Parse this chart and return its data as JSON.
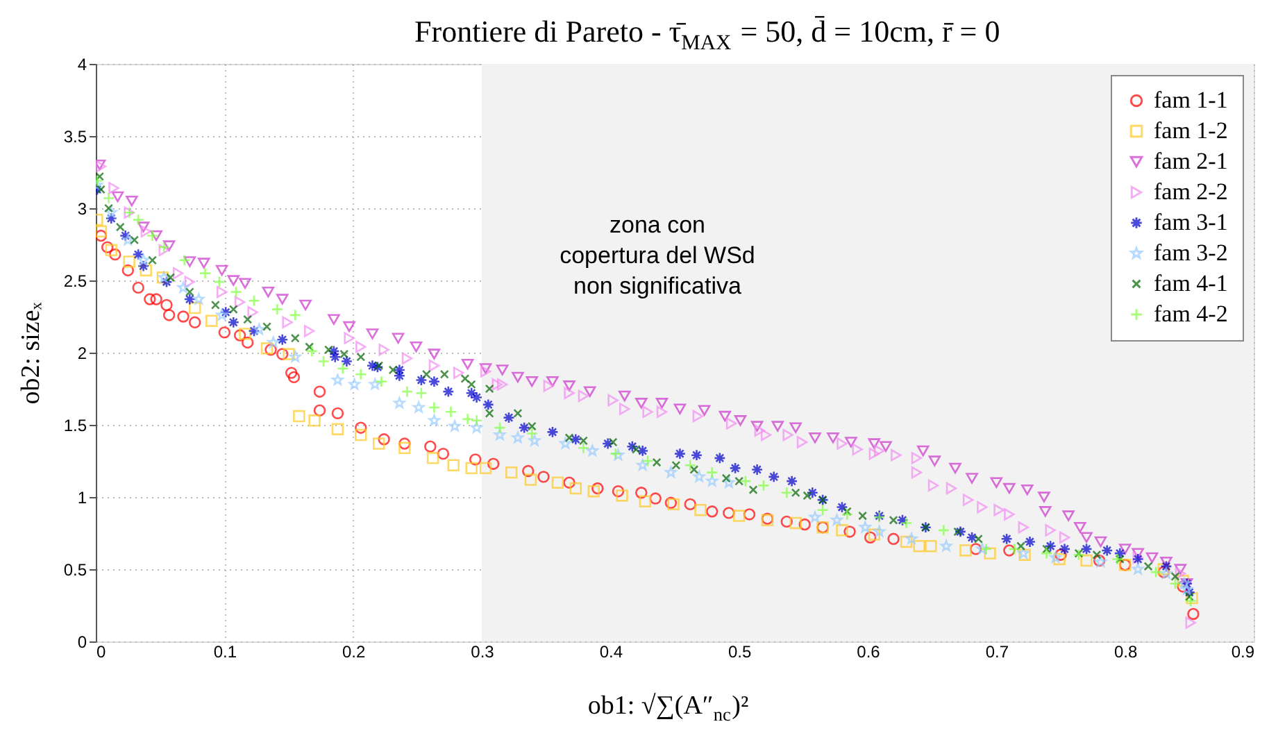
{
  "chart_data": {
    "type": "scatter",
    "title": "Frontiere di Pareto  -  τ̄$_{MAX}$ = 50, d̄ = 10cm, r̄ = 0",
    "xlabel": "ob1: √∑(A″$_{nc}$)²",
    "ylabel": "ob2: sizeₓ",
    "xlim": [
      0,
      0.9
    ],
    "xticks": [
      0,
      0.1,
      0.2,
      0.3,
      0.4,
      0.5,
      0.6,
      0.7,
      0.8,
      0.9
    ],
    "ylim": [
      0,
      4
    ],
    "yticks": [
      0,
      0.5,
      1,
      1.5,
      2,
      2.5,
      3,
      3.5,
      4
    ],
    "grid": true,
    "legend": "top right",
    "bands": [
      {
        "axis": "x",
        "from": 0.3,
        "to": 0.9,
        "color": "#f2f2f2"
      }
    ],
    "annotations": [
      "zona con\ncopertura del WSd\nnon significativa"
    ],
    "series": [
      {
        "name": "fam 1-1",
        "color": "#ff0000",
        "marker": "circle",
        "x": [
          0.004,
          0.009,
          0.015,
          0.025,
          0.033,
          0.042,
          0.047,
          0.055,
          0.057,
          0.068,
          0.077,
          0.1,
          0.112,
          0.118,
          0.136,
          0.145,
          0.152,
          0.154,
          0.174,
          0.174,
          0.188,
          0.206,
          0.224,
          0.24,
          0.26,
          0.27,
          0.295,
          0.309,
          0.336,
          0.348,
          0.368,
          0.39,
          0.406,
          0.424,
          0.435,
          0.447,
          0.462,
          0.479,
          0.492,
          0.508,
          0.522,
          0.537,
          0.551,
          0.565,
          0.586,
          0.602,
          0.62,
          0.684,
          0.71,
          0.75,
          0.78,
          0.8,
          0.83,
          0.845,
          0.853
        ],
        "values": [
          2.81,
          2.73,
          2.68,
          2.57,
          2.45,
          2.37,
          2.37,
          2.33,
          2.26,
          2.25,
          2.21,
          2.14,
          2.12,
          2.07,
          2.02,
          1.99,
          1.86,
          1.83,
          1.73,
          1.6,
          1.58,
          1.48,
          1.4,
          1.37,
          1.35,
          1.3,
          1.26,
          1.23,
          1.18,
          1.14,
          1.1,
          1.06,
          1.04,
          1.03,
          0.99,
          0.96,
          0.95,
          0.9,
          0.89,
          0.88,
          0.85,
          0.83,
          0.81,
          0.79,
          0.76,
          0.72,
          0.71,
          0.64,
          0.63,
          0.6,
          0.56,
          0.53,
          0.48,
          0.38,
          0.19
        ]
      },
      {
        "name": "fam 1-2",
        "color": "#ffc926",
        "marker": "square",
        "x": [
          0.001,
          0.004,
          0.012,
          0.026,
          0.039,
          0.052,
          0.077,
          0.09,
          0.116,
          0.133,
          0.15,
          0.158,
          0.17,
          0.188,
          0.206,
          0.22,
          0.24,
          0.262,
          0.278,
          0.292,
          0.303,
          0.323,
          0.338,
          0.359,
          0.373,
          0.387,
          0.409,
          0.427,
          0.449,
          0.47,
          0.5,
          0.522,
          0.544,
          0.565,
          0.58,
          0.605,
          0.63,
          0.64,
          0.649,
          0.676,
          0.695,
          0.722,
          0.749,
          0.77,
          0.8,
          0.83,
          0.845,
          0.852
        ],
        "values": [
          2.92,
          2.84,
          2.71,
          2.63,
          2.57,
          2.52,
          2.31,
          2.22,
          2.13,
          2.03,
          1.99,
          1.56,
          1.53,
          1.47,
          1.43,
          1.37,
          1.34,
          1.27,
          1.22,
          1.2,
          1.2,
          1.17,
          1.12,
          1.1,
          1.06,
          1.04,
          1.01,
          0.97,
          0.95,
          0.91,
          0.87,
          0.84,
          0.82,
          0.79,
          0.77,
          0.74,
          0.69,
          0.66,
          0.66,
          0.63,
          0.61,
          0.6,
          0.57,
          0.56,
          0.53,
          0.5,
          0.42,
          0.3
        ]
      },
      {
        "name": "fam 2-1",
        "color": "#cc33cc",
        "marker": "triangle-down",
        "x": [
          0.003,
          0.017,
          0.028,
          0.037,
          0.047,
          0.057,
          0.073,
          0.084,
          0.098,
          0.107,
          0.116,
          0.134,
          0.145,
          0.163,
          0.185,
          0.197,
          0.215,
          0.235,
          0.249,
          0.263,
          0.289,
          0.303,
          0.316,
          0.328,
          0.339,
          0.355,
          0.368,
          0.384,
          0.411,
          0.424,
          0.44,
          0.454,
          0.473,
          0.489,
          0.501,
          0.514,
          0.53,
          0.544,
          0.559,
          0.573,
          0.587,
          0.605,
          0.614,
          0.643,
          0.652,
          0.668,
          0.681,
          0.7,
          0.71,
          0.724,
          0.737,
          0.738,
          0.756,
          0.765,
          0.77,
          0.781,
          0.8,
          0.81,
          0.821,
          0.832,
          0.843,
          0.848
        ],
        "values": [
          3.3,
          3.08,
          3.05,
          2.87,
          2.81,
          2.74,
          2.63,
          2.62,
          2.57,
          2.5,
          2.48,
          2.42,
          2.37,
          2.33,
          2.23,
          2.18,
          2.13,
          2.1,
          2.04,
          1.99,
          1.92,
          1.89,
          1.88,
          1.83,
          1.8,
          1.8,
          1.77,
          1.73,
          1.7,
          1.65,
          1.65,
          1.61,
          1.6,
          1.56,
          1.53,
          1.49,
          1.49,
          1.48,
          1.41,
          1.41,
          1.38,
          1.37,
          1.35,
          1.32,
          1.25,
          1.2,
          1.13,
          1.1,
          1.06,
          1.05,
          1.0,
          0.9,
          0.87,
          0.79,
          0.72,
          0.69,
          0.64,
          0.61,
          0.58,
          0.55,
          0.5,
          0.4
        ]
      },
      {
        "name": "fam 2-2",
        "color": "#f28cf2",
        "marker": "triangle-right",
        "x": [
          0.004,
          0.014,
          0.026,
          0.039,
          0.053,
          0.064,
          0.073,
          0.098,
          0.112,
          0.122,
          0.149,
          0.166,
          0.197,
          0.206,
          0.224,
          0.242,
          0.263,
          0.282,
          0.303,
          0.312,
          0.316,
          0.352,
          0.368,
          0.379,
          0.402,
          0.411,
          0.429,
          0.44,
          0.468,
          0.494,
          0.516,
          0.521,
          0.538,
          0.549,
          0.58,
          0.592,
          0.605,
          0.609,
          0.622,
          0.638,
          0.638,
          0.651,
          0.665,
          0.678,
          0.689,
          0.702,
          0.71,
          0.721,
          0.742,
          0.753,
          0.81,
          0.843,
          0.851
        ],
        "values": [
          3.29,
          3.14,
          2.97,
          2.84,
          2.71,
          2.55,
          2.49,
          2.42,
          2.35,
          2.28,
          2.21,
          2.15,
          2.1,
          2.04,
          2.02,
          1.96,
          1.91,
          1.86,
          1.87,
          1.78,
          1.78,
          1.77,
          1.72,
          1.7,
          1.67,
          1.61,
          1.59,
          1.59,
          1.56,
          1.51,
          1.46,
          1.43,
          1.43,
          1.38,
          1.37,
          1.33,
          1.3,
          1.32,
          1.29,
          1.27,
          1.17,
          1.08,
          1.06,
          0.98,
          0.93,
          0.91,
          0.88,
          0.79,
          0.77,
          0.72,
          0.58,
          0.47,
          0.13
        ]
      },
      {
        "name": "fam 3-1",
        "color": "#0000cc",
        "marker": "cross",
        "x": [
          0.001,
          0.012,
          0.023,
          0.033,
          0.037,
          0.055,
          0.073,
          0.101,
          0.107,
          0.123,
          0.145,
          0.185,
          0.186,
          0.195,
          0.215,
          0.219,
          0.236,
          0.236,
          0.253,
          0.263,
          0.274,
          0.292,
          0.296,
          0.305,
          0.321,
          0.333,
          0.355,
          0.373,
          0.398,
          0.417,
          0.425,
          0.454,
          0.467,
          0.485,
          0.497,
          0.514,
          0.527,
          0.541,
          0.557,
          0.565,
          0.58,
          0.609,
          0.627,
          0.645,
          0.672,
          0.681,
          0.708,
          0.726,
          0.742,
          0.753,
          0.77,
          0.786,
          0.796,
          0.81,
          0.832,
          0.848,
          0.85
        ],
        "values": [
          3.13,
          2.93,
          2.81,
          2.68,
          2.6,
          2.49,
          2.37,
          2.28,
          2.21,
          2.15,
          2.09,
          2.01,
          1.97,
          1.94,
          1.91,
          1.9,
          1.88,
          1.84,
          1.81,
          1.8,
          1.73,
          1.72,
          1.69,
          1.64,
          1.55,
          1.48,
          1.45,
          1.4,
          1.37,
          1.35,
          1.32,
          1.3,
          1.29,
          1.27,
          1.2,
          1.19,
          1.14,
          1.11,
          1.03,
          0.98,
          0.93,
          0.87,
          0.84,
          0.79,
          0.76,
          0.72,
          0.71,
          0.69,
          0.66,
          0.64,
          0.64,
          0.63,
          0.61,
          0.57,
          0.52,
          0.4,
          0.34
        ]
      },
      {
        "name": "fam 3-2",
        "color": "#99ccff",
        "marker": "star",
        "x": [
          0.001,
          0.012,
          0.025,
          0.037,
          0.053,
          0.068,
          0.08,
          0.098,
          0.127,
          0.138,
          0.155,
          0.188,
          0.201,
          0.217,
          0.236,
          0.251,
          0.263,
          0.279,
          0.296,
          0.314,
          0.328,
          0.341,
          0.365,
          0.386,
          0.406,
          0.425,
          0.447,
          0.469,
          0.479,
          0.492,
          0.559,
          0.576,
          0.598,
          0.609,
          0.634,
          0.661,
          0.689,
          0.721,
          0.746,
          0.781,
          0.81,
          0.832,
          0.846,
          0.848
        ],
        "values": [
          3.16,
          2.97,
          2.78,
          2.64,
          2.52,
          2.45,
          2.37,
          2.26,
          2.16,
          2.07,
          1.97,
          1.81,
          1.78,
          1.78,
          1.65,
          1.62,
          1.53,
          1.49,
          1.48,
          1.43,
          1.41,
          1.39,
          1.37,
          1.32,
          1.29,
          1.22,
          1.17,
          1.14,
          1.11,
          1.1,
          0.86,
          0.84,
          0.79,
          0.76,
          0.71,
          0.66,
          0.64,
          0.61,
          0.58,
          0.55,
          0.5,
          0.47,
          0.4,
          0.36
        ]
      },
      {
        "name": "fam 4-1",
        "color": "#006600",
        "marker": "x",
        "x": [
          0.003,
          0.004,
          0.01,
          0.019,
          0.03,
          0.044,
          0.058,
          0.073,
          0.093,
          0.107,
          0.118,
          0.133,
          0.155,
          0.166,
          0.181,
          0.193,
          0.206,
          0.22,
          0.231,
          0.257,
          0.271,
          0.287,
          0.292,
          0.306,
          0.306,
          0.328,
          0.339,
          0.368,
          0.379,
          0.402,
          0.42,
          0.436,
          0.451,
          0.465,
          0.49,
          0.5,
          0.511,
          0.544,
          0.553,
          0.565,
          0.584,
          0.596,
          0.62,
          0.645,
          0.67,
          0.686,
          0.719,
          0.739,
          0.764,
          0.778,
          0.796,
          0.818,
          0.839,
          0.85
        ],
        "values": [
          3.22,
          3.13,
          3.0,
          2.87,
          2.78,
          2.64,
          2.52,
          2.42,
          2.33,
          2.3,
          2.23,
          2.18,
          2.1,
          2.04,
          2.02,
          1.99,
          1.97,
          1.91,
          1.88,
          1.85,
          1.85,
          1.82,
          1.78,
          1.75,
          1.58,
          1.58,
          1.49,
          1.41,
          1.39,
          1.38,
          1.33,
          1.24,
          1.22,
          1.19,
          1.13,
          1.11,
          1.05,
          1.03,
          1.01,
          0.98,
          0.9,
          0.87,
          0.84,
          0.79,
          0.76,
          0.71,
          0.66,
          0.64,
          0.61,
          0.6,
          0.57,
          0.52,
          0.45,
          0.31
        ]
      },
      {
        "name": "fam 4-2",
        "color": "#80ff40",
        "marker": "plus",
        "x": [
          0.001,
          0.01,
          0.026,
          0.033,
          0.044,
          0.053,
          0.069,
          0.085,
          0.096,
          0.109,
          0.123,
          0.141,
          0.155,
          0.168,
          0.177,
          0.192,
          0.206,
          0.222,
          0.242,
          0.253,
          0.263,
          0.276,
          0.289,
          0.296,
          0.314,
          0.339,
          0.379,
          0.404,
          0.429,
          0.462,
          0.479,
          0.505,
          0.519,
          0.537,
          0.565,
          0.584,
          0.609,
          0.63,
          0.659,
          0.692,
          0.714,
          0.739,
          0.764,
          0.794,
          0.824,
          0.839,
          0.851
        ],
        "values": [
          3.19,
          3.07,
          2.97,
          2.92,
          2.81,
          2.73,
          2.64,
          2.55,
          2.49,
          2.42,
          2.36,
          2.3,
          2.26,
          2.01,
          1.94,
          1.89,
          1.85,
          1.8,
          1.73,
          1.72,
          1.62,
          1.59,
          1.54,
          1.53,
          1.48,
          1.44,
          1.34,
          1.3,
          1.25,
          1.22,
          1.17,
          1.11,
          1.08,
          1.03,
          0.91,
          0.88,
          0.86,
          0.82,
          0.77,
          0.64,
          0.64,
          0.61,
          0.6,
          0.57,
          0.48,
          0.4,
          0.28
        ]
      }
    ]
  }
}
